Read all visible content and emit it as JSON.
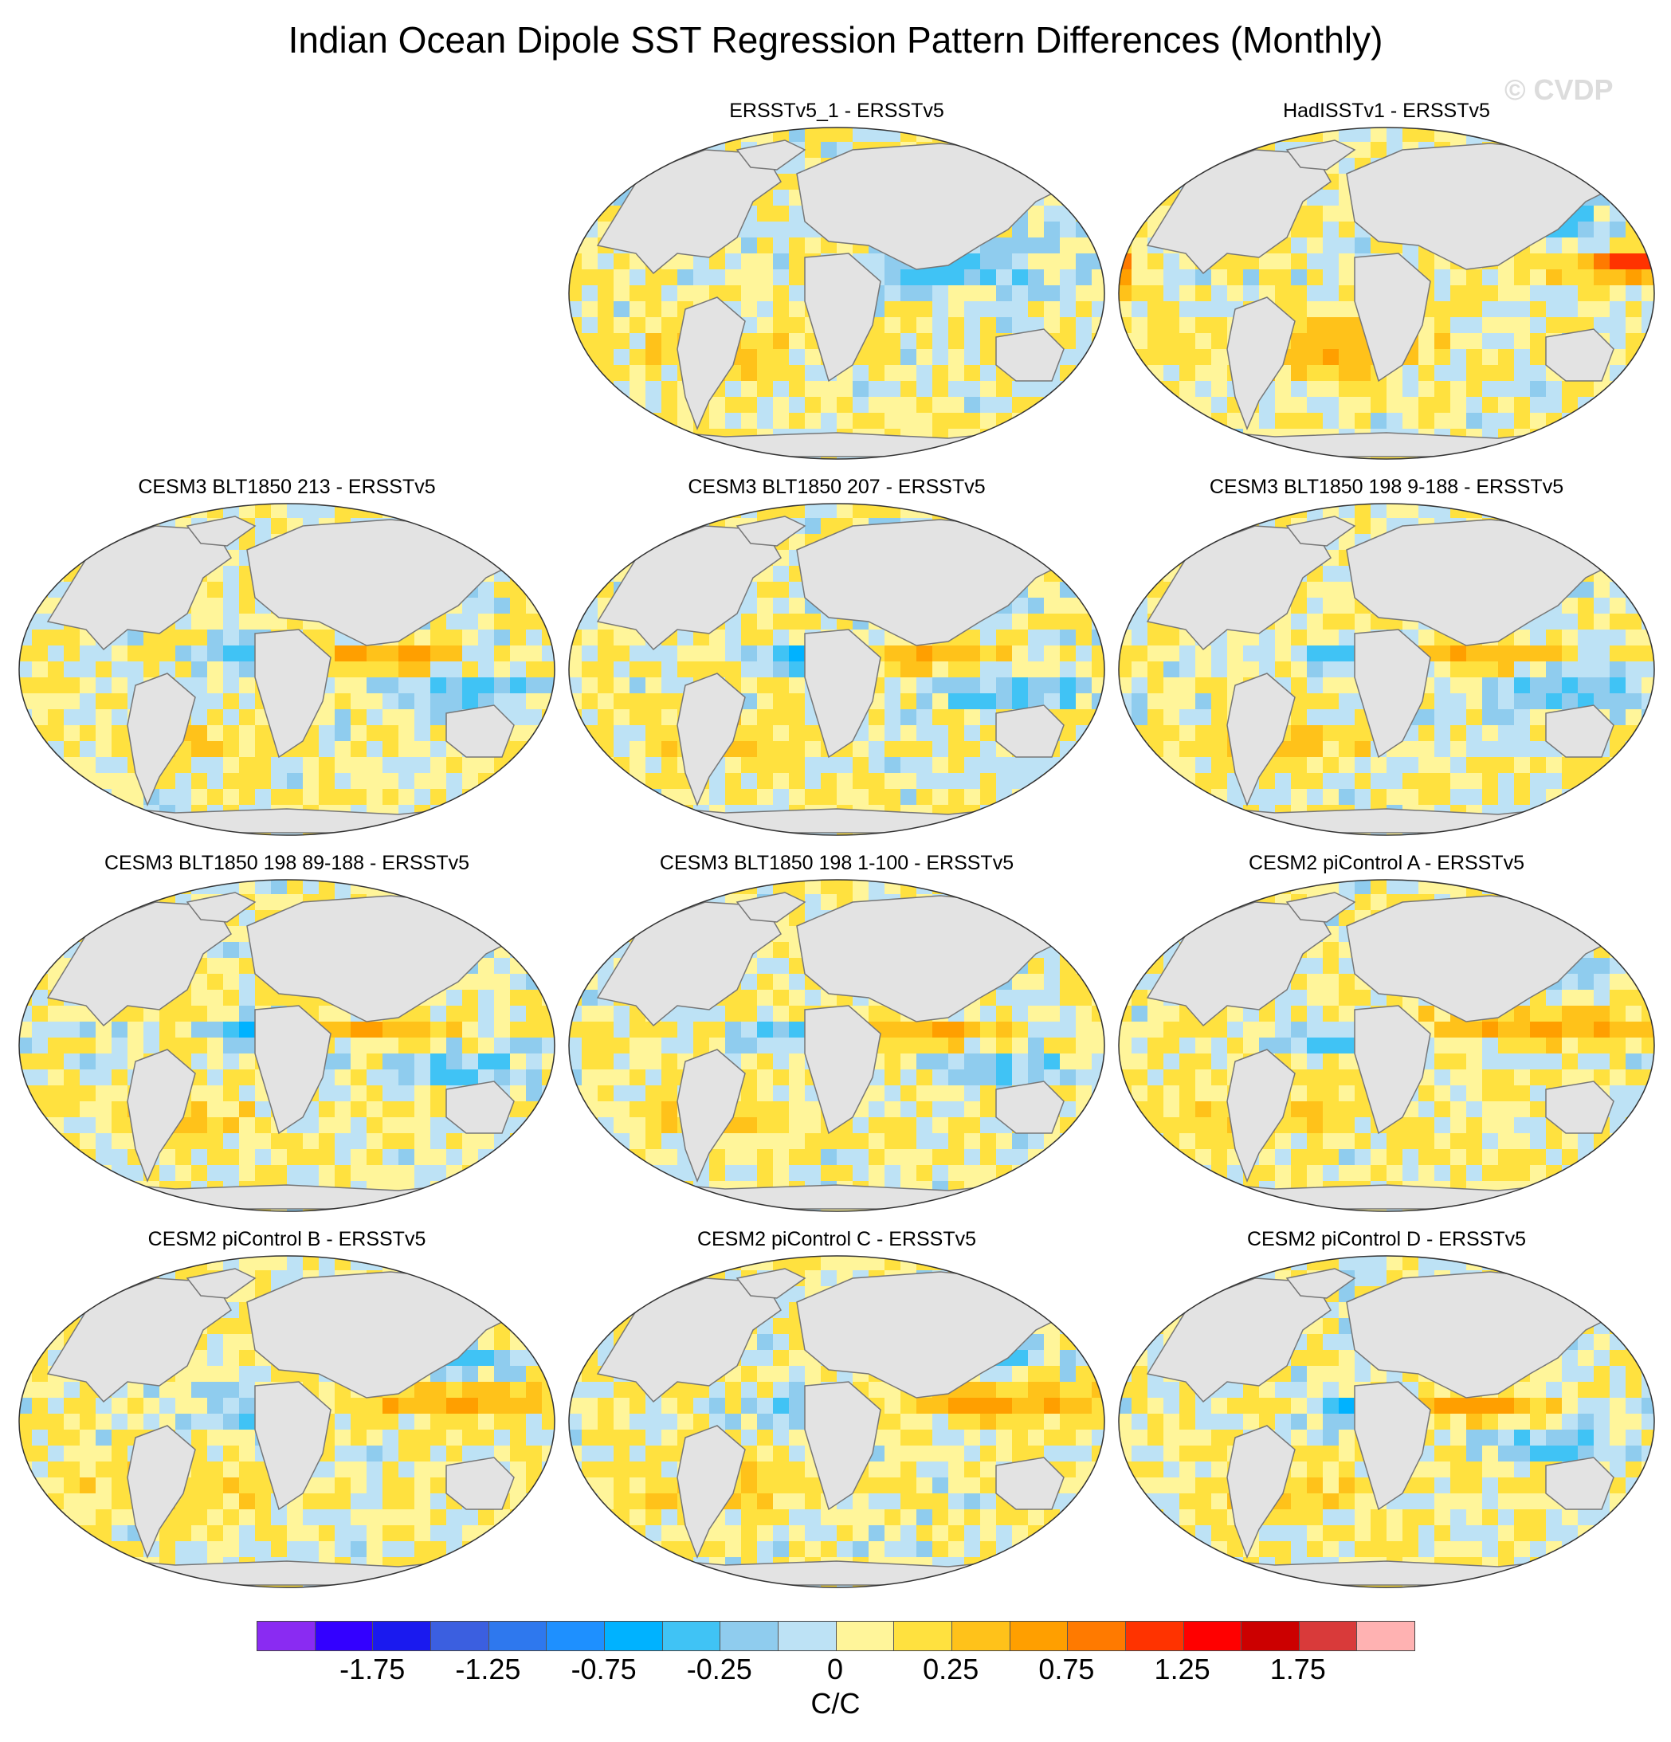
{
  "title": "Indian Ocean Dipole SST Regression Pattern Differences (Monthly)",
  "watermark": "© CVDP",
  "panels": [
    {
      "title": "ERSSTv5_1 - ERSSTv5",
      "pattern": "weak"
    },
    {
      "title": "HadISSTv1 - ERSSTv5",
      "pattern": "pacific_warm_strong"
    },
    {
      "title": "CESM3 BLT1850 213 - ERSSTv5",
      "pattern": "dipole"
    },
    {
      "title": "CESM3 BLT1850 207 - ERSSTv5",
      "pattern": "dipole"
    },
    {
      "title": "CESM3 BLT1850 198 9-188 - ERSSTv5",
      "pattern": "dipole"
    },
    {
      "title": "CESM3 BLT1850 198 89-188 - ERSSTv5",
      "pattern": "dipole"
    },
    {
      "title": "CESM3 BLT1850 198 1-100 - ERSSTv5",
      "pattern": "dipole"
    },
    {
      "title": "CESM2 piControl A - ERSSTv5",
      "pattern": "pacific_warm"
    },
    {
      "title": "CESM2 piControl B - ERSSTv5",
      "pattern": "pacific_warm"
    },
    {
      "title": "CESM2 piControl C - ERSSTv5",
      "pattern": "pacific_warm"
    },
    {
      "title": "CESM2 piControl D - ERSSTv5",
      "pattern": "dipole"
    }
  ],
  "colorbar": {
    "units": "C/C",
    "levels": [
      -2,
      -1.75,
      -1.5,
      -1.25,
      -1,
      -0.75,
      -0.5,
      -0.25,
      -0.1,
      0,
      0.1,
      0.25,
      0.5,
      0.75,
      1,
      1.25,
      1.5,
      1.75,
      2
    ],
    "labels": [
      "-1.75",
      "-1.25",
      "-0.75",
      "-0.25",
      "0",
      "0.25",
      "0.75",
      "1.25",
      "1.75"
    ],
    "label_levels": [
      -1.75,
      -1.25,
      -0.75,
      -0.25,
      0,
      0.25,
      0.75,
      1.25,
      1.75
    ],
    "colors": [
      "#8a2bf2",
      "#3300ff",
      "#1a1aef",
      "#3b5fe0",
      "#2e78ee",
      "#1e90ff",
      "#00b2ff",
      "#40c3f5",
      "#8fccee",
      "#bde2f5",
      "#fff59a",
      "#ffe13f",
      "#ffc21a",
      "#ff9f00",
      "#ff7a00",
      "#ff3300",
      "#ff0000",
      "#cc0000",
      "#d93a3a",
      "#ffb2b2"
    ]
  },
  "land_color": "#e3e3e3",
  "coast_color": "#777777"
}
